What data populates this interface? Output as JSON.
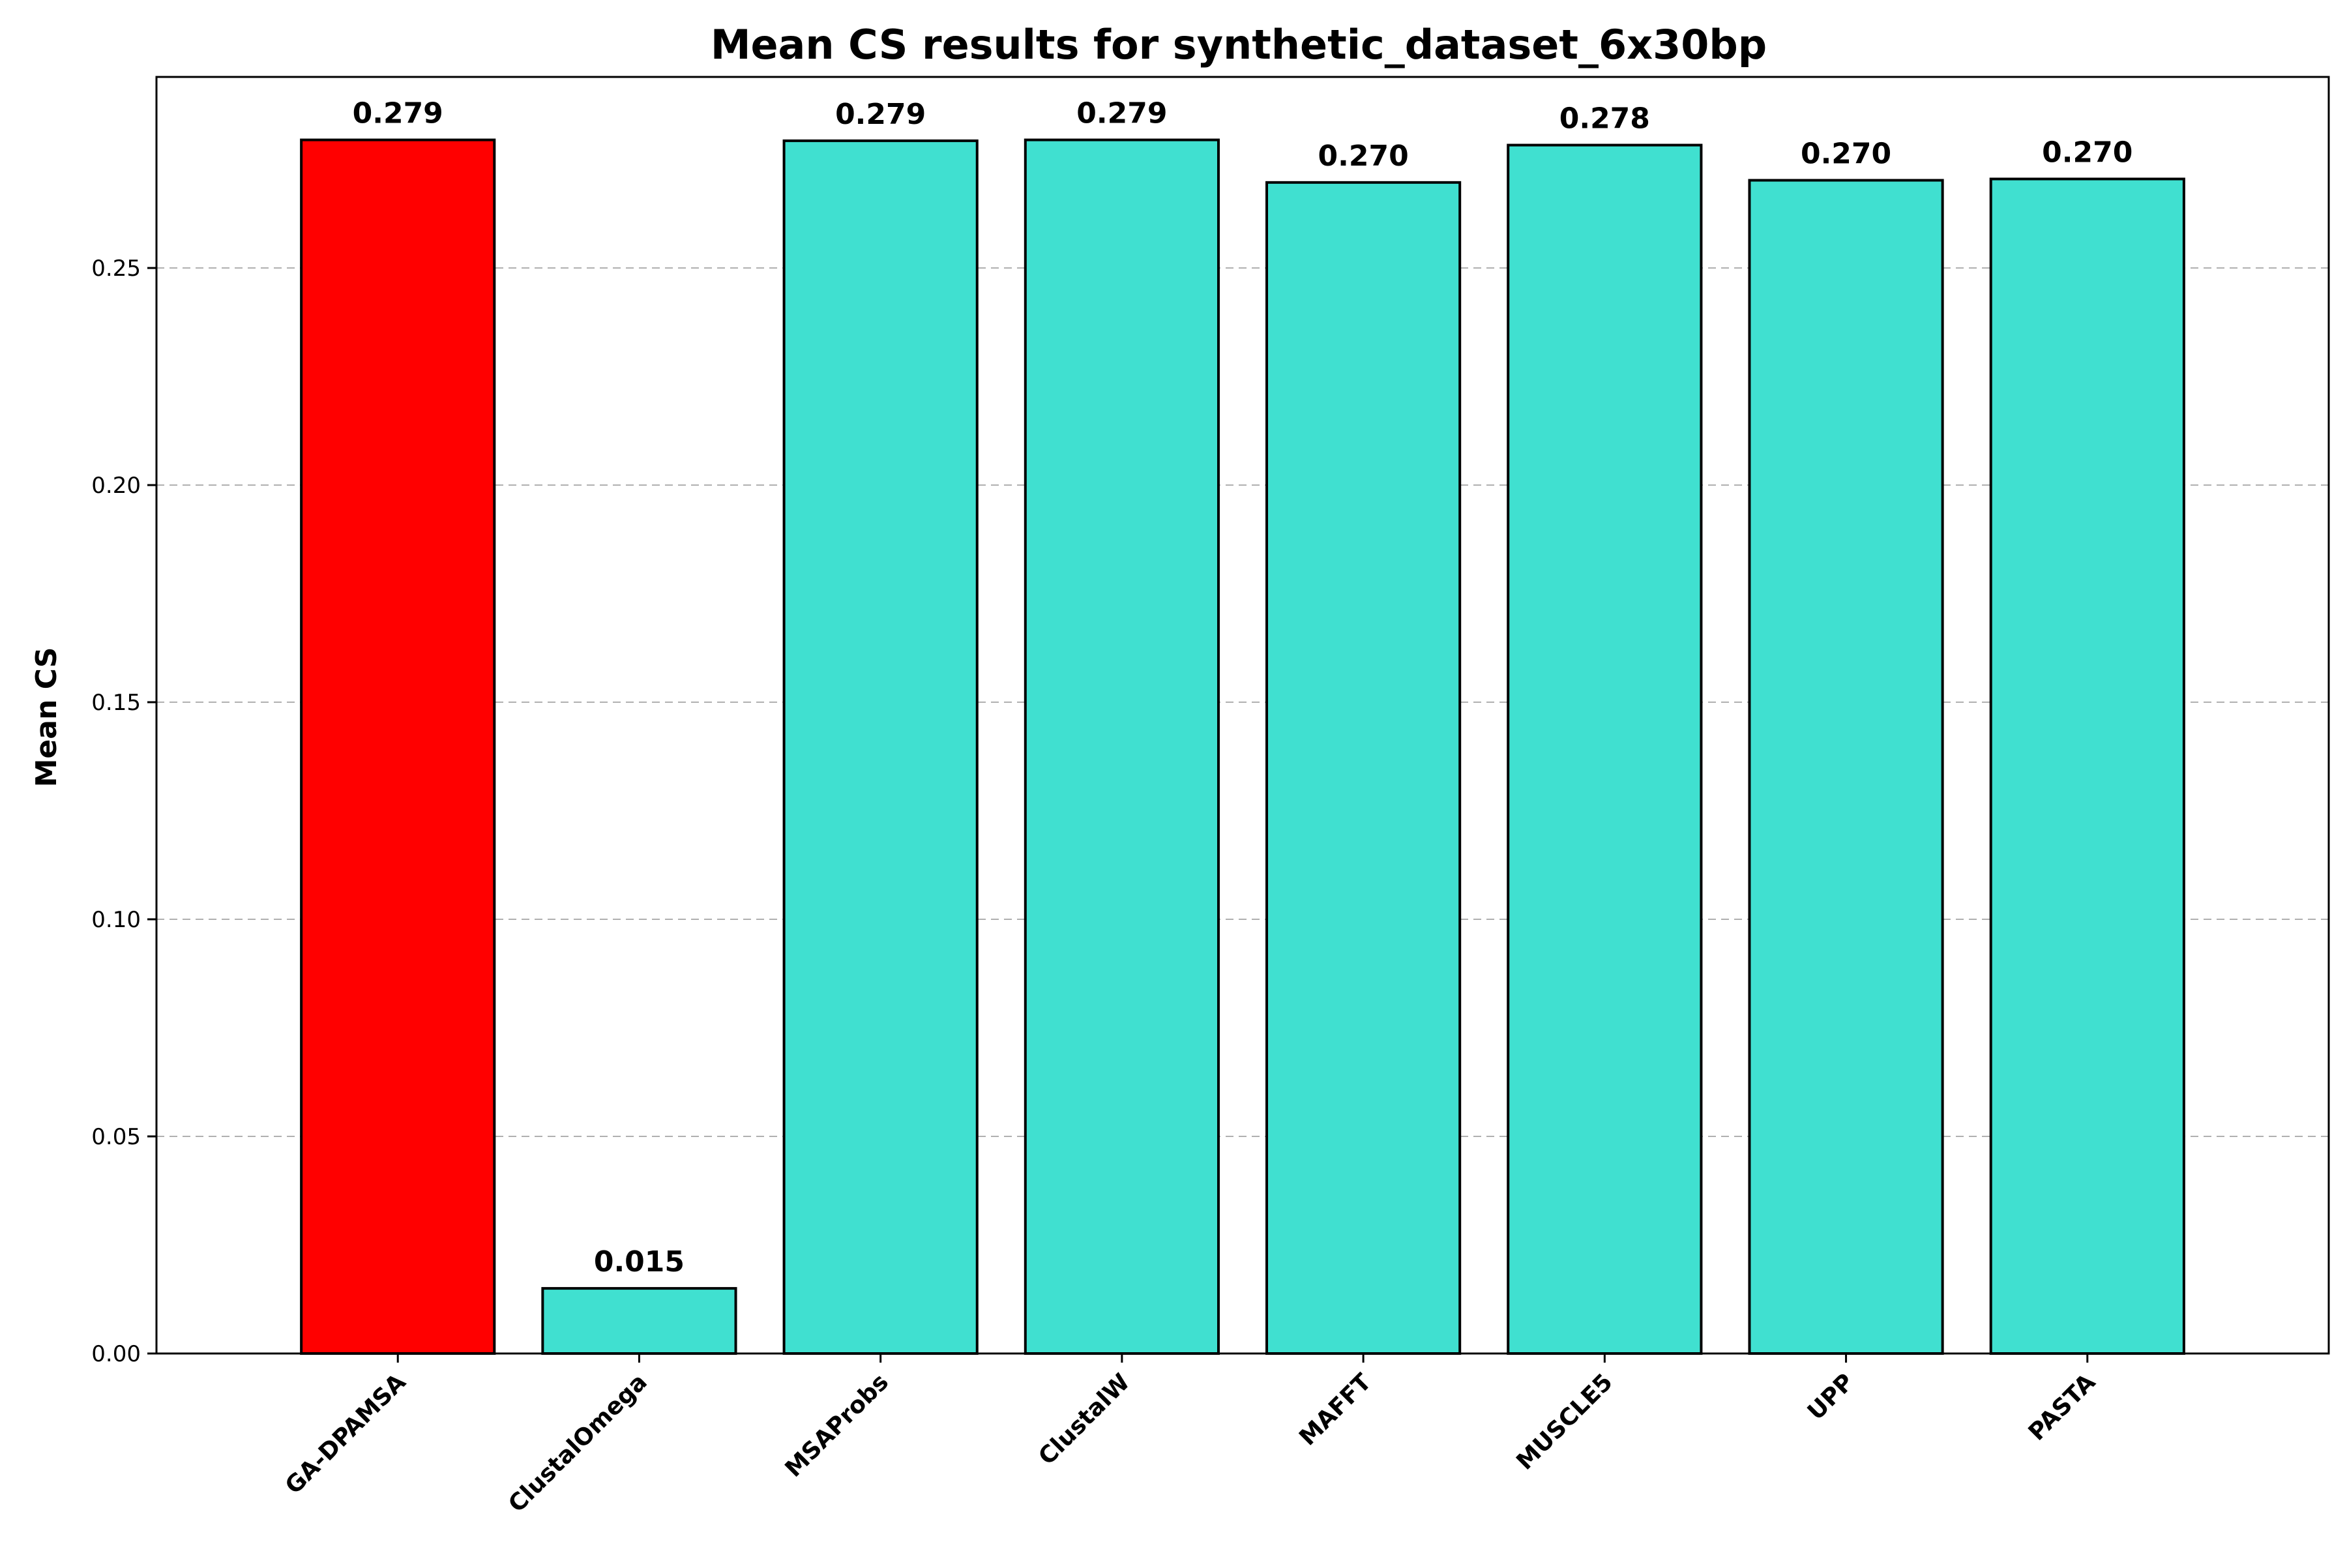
{
  "chart_data": {
    "type": "bar",
    "title": "Mean CS results for synthetic_dataset_6x30bp",
    "xlabel": "",
    "ylabel": "Mean CS",
    "ylim": [
      0,
      0.294
    ],
    "yticks": [
      "0.00",
      "0.05",
      "0.10",
      "0.15",
      "0.20",
      "0.25"
    ],
    "ytick_values": [
      0,
      0.05,
      0.1,
      0.15,
      0.2,
      0.25
    ],
    "grid": "y-dashed",
    "categories": [
      "GA-DPAMSA",
      "ClustalOmega",
      "MSAProbs",
      "ClustalW",
      "MAFFT",
      "MUSCLE5",
      "UPP",
      "PASTA"
    ],
    "values": [
      0.2795,
      0.015,
      0.2793,
      0.2795,
      0.2697,
      0.2783,
      0.2702,
      0.2705
    ],
    "data_labels": [
      "0.279",
      "0.015",
      "0.279",
      "0.279",
      "0.270",
      "0.278",
      "0.270",
      "0.270"
    ],
    "colors": {
      "highlight": "#ff0000",
      "default": "#40e0d0",
      "edge": "#000000",
      "grid": "#b0b0b0"
    },
    "highlight_index": 0
  }
}
